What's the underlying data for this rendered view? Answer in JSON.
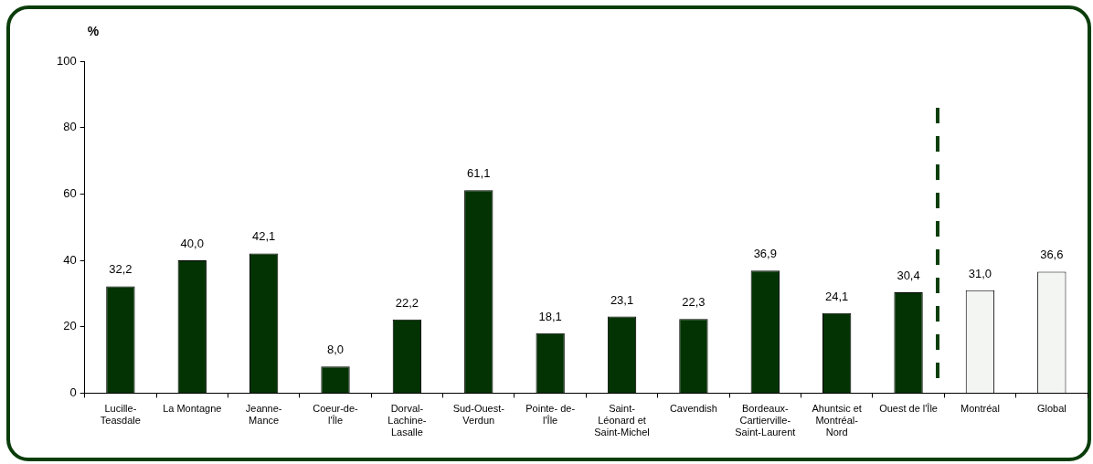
{
  "chart_data": {
    "type": "bar",
    "ylabel": "%",
    "categories": [
      "Lucille-\nTeasdale",
      "La Montagne",
      "Jeanne-\nMance",
      "Coeur-de-\nl'Île",
      "Dorval-\nLachine-\nLasalle",
      "Sud-Ouest-\nVerdun",
      "Pointe- de-\nl'Île",
      "Saint-\nLéonard et\nSaint-Michel",
      "Cavendish",
      "Bordeaux-\nCartierville-\nSaint-Laurent",
      "Ahuntsic et\nMontréal-\nNord",
      "Ouest de l'Île",
      "Montréal",
      "Global"
    ],
    "values": [
      32.2,
      40.0,
      42.1,
      8.0,
      22.2,
      61.1,
      18.1,
      23.1,
      22.3,
      36.9,
      24.1,
      30.4,
      31.0,
      36.6
    ],
    "value_labels": [
      "32,2",
      "40,0",
      "42,1",
      "8,0",
      "22,2",
      "61,1",
      "18,1",
      "23,1",
      "22,3",
      "36,9",
      "24,1",
      "30,4",
      "31,0",
      "36,6"
    ],
    "colors": [
      "#033303",
      "#033303",
      "#033303",
      "#033303",
      "#033303",
      "#033303",
      "#033303",
      "#033303",
      "#033303",
      "#033303",
      "#033303",
      "#033303",
      "#f2f5f2",
      "#f2f5f2"
    ],
    "ylim": [
      0,
      100
    ],
    "yticks": [
      0,
      20,
      40,
      60,
      80,
      100
    ]
  }
}
